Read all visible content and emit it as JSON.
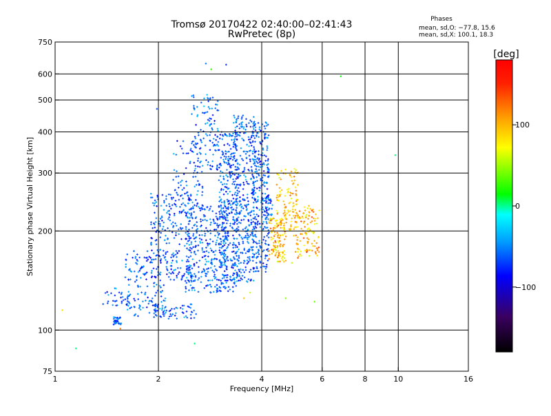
{
  "chart_data": {
    "type": "scatter",
    "title": "Tromsø 20170422 02:40:00–02:41:43",
    "subtitle": "RwPretec (8p)",
    "xlabel": "Frequency [MHz]",
    "ylabel": "Stationary phase Virtual Height [km]",
    "x_scale": "log",
    "y_scale": "log",
    "xlim": [
      1,
      16
    ],
    "ylim": [
      75,
      750
    ],
    "x_ticks": [
      1,
      2,
      4,
      6,
      8,
      10,
      16
    ],
    "x_tick_labels": [
      "1",
      "2",
      "4",
      "6",
      "8",
      "10",
      "16"
    ],
    "x_gridlines": [
      2,
      4,
      6,
      8,
      10
    ],
    "y_ticks": [
      75,
      100,
      200,
      300,
      400,
      500,
      600,
      750
    ],
    "y_tick_labels": [
      "75",
      "100",
      "200",
      "300",
      "400",
      "500",
      "600",
      "750"
    ],
    "y_gridlines": [
      100,
      200,
      300,
      400,
      500,
      600
    ],
    "grid": true,
    "phases": {
      "heading": "Phases",
      "line_o": "mean, sd,O: −77.8, 15.6",
      "line_x": "mean, sd,X: 100.1, 18.3"
    },
    "colorbar": {
      "label": "[deg]",
      "range": [
        -180,
        180
      ],
      "ticks": [
        100,
        0,
        -100
      ],
      "tick_labels": [
        "100",
        "0",
        "−100"
      ]
    },
    "series": [
      {
        "mode": "O",
        "phase_mean": -77.8,
        "phase_sd": 15.6,
        "clusters": [
          {
            "f": [
              1.48,
              1.56
            ],
            "h": [
              104,
              110
            ],
            "n": 35
          },
          {
            "f": [
              1.4,
              1.65
            ],
            "h": [
              118,
              135
            ],
            "n": 30
          },
          {
            "f": [
              1.6,
              2.1
            ],
            "h": [
              110,
              175
            ],
            "n": 150
          },
          {
            "f": [
              1.9,
              2.6
            ],
            "h": [
              108,
              120
            ],
            "n": 60
          },
          {
            "f": [
              1.9,
              2.5
            ],
            "h": [
              140,
              260
            ],
            "n": 230
          },
          {
            "f": [
              2.2,
              2.7
            ],
            "h": [
              230,
              380
            ],
            "n": 80
          },
          {
            "f": [
              2.5,
              3.0
            ],
            "h": [
              300,
              520
            ],
            "n": 120
          },
          {
            "f": [
              2.4,
              3.2
            ],
            "h": [
              130,
              240
            ],
            "n": 350
          },
          {
            "f": [
              3.0,
              3.4
            ],
            "h": [
              130,
              400
            ],
            "n": 320
          },
          {
            "f": [
              3.3,
              3.8
            ],
            "h": [
              140,
              450
            ],
            "n": 350
          },
          {
            "f": [
              3.75,
              4.2
            ],
            "h": [
              150,
              430
            ],
            "n": 300
          },
          {
            "f": [
              4.0,
              4.3
            ],
            "h": [
              200,
              260
            ],
            "n": 40
          }
        ]
      },
      {
        "mode": "X",
        "phase_mean": 100.1,
        "phase_sd": 18.3,
        "clusters": [
          {
            "f": [
              4.2,
              4.7
            ],
            "h": [
              160,
              220
            ],
            "n": 110
          },
          {
            "f": [
              4.4,
              5.1
            ],
            "h": [
              190,
              310
            ],
            "n": 120
          },
          {
            "f": [
              5.0,
              5.9
            ],
            "h": [
              165,
              240
            ],
            "n": 110
          }
        ]
      }
    ],
    "scattered_points": [
      {
        "f": 1.05,
        "h": 115,
        "phase": 90
      },
      {
        "f": 1.15,
        "h": 88,
        "phase": -10
      },
      {
        "f": 1.38,
        "h": 120,
        "phase": -80
      },
      {
        "f": 1.55,
        "h": 101,
        "phase": 120
      },
      {
        "f": 2.55,
        "h": 91,
        "phase": -10
      },
      {
        "f": 1.98,
        "h": 470,
        "phase": -80
      },
      {
        "f": 2.75,
        "h": 645,
        "phase": -70
      },
      {
        "f": 3.15,
        "h": 640,
        "phase": -90
      },
      {
        "f": 2.85,
        "h": 620,
        "phase": 20
      },
      {
        "f": 6.8,
        "h": 590,
        "phase": 0
      },
      {
        "f": 9.8,
        "h": 340,
        "phase": -10
      },
      {
        "f": 4.9,
        "h": 160,
        "phase": 60
      },
      {
        "f": 4.7,
        "h": 125,
        "phase": 40
      },
      {
        "f": 5.7,
        "h": 122,
        "phase": 30
      },
      {
        "f": 3.55,
        "h": 125,
        "phase": 100
      },
      {
        "f": 3.7,
        "h": 130,
        "phase": 60
      }
    ]
  }
}
